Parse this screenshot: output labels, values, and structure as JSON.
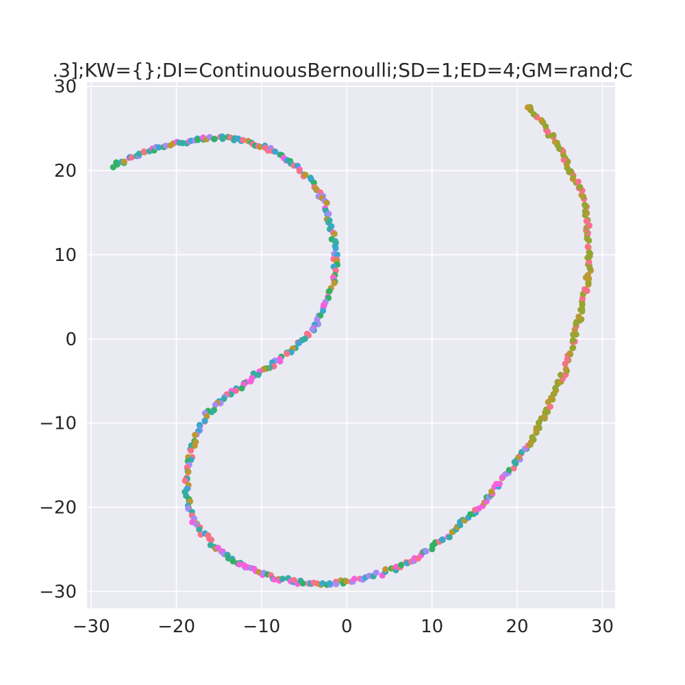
{
  "chart_data": {
    "type": "scatter",
    "title": ".3];KW={};DI=ContinuousBernoulli;SD=1;ED=4;GM=rand;C",
    "xlabel": "",
    "ylabel": "",
    "xlim": [
      -30.5,
      31.5
    ],
    "ylim": [
      -32,
      30.5
    ],
    "xticks": [
      -30,
      -20,
      -10,
      0,
      10,
      20,
      30
    ],
    "yticks": [
      -30,
      -20,
      -10,
      0,
      10,
      20,
      30
    ],
    "xtick_labels": [
      "−30",
      "−20",
      "−10",
      "0",
      "10",
      "20",
      "30"
    ],
    "ytick_labels": [
      "−30",
      "−20",
      "−10",
      "0",
      "10",
      "20",
      "30"
    ],
    "grid": true,
    "background": "#eaeaf2",
    "palette": [
      "#f77189",
      "#bb9832",
      "#97a431",
      "#32b166",
      "#36ada4",
      "#39a7d0",
      "#a48cf4",
      "#f561dd"
    ],
    "curves": [
      {
        "color_indices": [
          7,
          6,
          5,
          4,
          3,
          1,
          0
        ],
        "points": [
          [
            -27.5,
            20.5
          ],
          [
            -26,
            21.2
          ],
          [
            -24,
            22.2
          ],
          [
            -22,
            22.8
          ],
          [
            -20,
            23.3
          ],
          [
            -18,
            23.5
          ],
          [
            -16,
            23.8
          ],
          [
            -14,
            23.9
          ],
          [
            -12,
            23.6
          ],
          [
            -10,
            23.0
          ],
          [
            -8,
            22.0
          ],
          [
            -6,
            20.5
          ],
          [
            -4,
            18.5
          ],
          [
            -2.5,
            16
          ],
          [
            -1.8,
            13
          ],
          [
            -1.3,
            10
          ],
          [
            -1.4,
            7.5
          ],
          [
            -2.3,
            4.5
          ],
          [
            -3.5,
            2
          ],
          [
            -5,
            0
          ],
          [
            -7,
            -1.8
          ],
          [
            -9,
            -3.3
          ],
          [
            -11,
            -4.5
          ],
          [
            -13,
            -6
          ],
          [
            -15,
            -7.5
          ],
          [
            -16.5,
            -9
          ],
          [
            -17.5,
            -11
          ],
          [
            -18.3,
            -13.5
          ],
          [
            -18.8,
            -16
          ],
          [
            -18.8,
            -18.5
          ],
          [
            -18.3,
            -21
          ],
          [
            -17,
            -23
          ],
          [
            -15,
            -25
          ],
          [
            -13,
            -26.5
          ],
          [
            -11,
            -27.5
          ],
          [
            -9,
            -28.2
          ],
          [
            -7,
            -28.6
          ],
          [
            -5,
            -29
          ],
          [
            -3,
            -29.1
          ],
          [
            -1.5,
            -29
          ],
          [
            0.5,
            -28.8
          ],
          [
            3,
            -28.2
          ],
          [
            5,
            -27.5
          ],
          [
            7.5,
            -26.5
          ],
          [
            9.5,
            -25
          ],
          [
            12,
            -23.3
          ],
          [
            14,
            -21.5
          ],
          [
            16,
            -19.5
          ],
          [
            18,
            -17
          ],
          [
            20,
            -14.5
          ],
          [
            21.5,
            -12.5
          ]
        ]
      },
      {
        "color_indices": [
          2,
          2,
          2,
          0,
          1
        ],
        "points": [
          [
            21.5,
            -12.5
          ],
          [
            22.5,
            -10.5
          ],
          [
            23.5,
            -8.5
          ],
          [
            24.5,
            -6
          ],
          [
            25.5,
            -4
          ],
          [
            26.2,
            -1.5
          ],
          [
            27,
            1
          ],
          [
            27.5,
            3.5
          ],
          [
            28,
            5.5
          ],
          [
            28.4,
            8
          ],
          [
            28.5,
            10.5
          ],
          [
            28.3,
            13
          ],
          [
            28,
            15.5
          ],
          [
            27.5,
            17.5
          ],
          [
            26.5,
            19.5
          ],
          [
            25.5,
            21.5
          ],
          [
            24.5,
            23.5
          ],
          [
            23.5,
            25
          ],
          [
            22.5,
            26.3
          ],
          [
            21.5,
            27.3
          ],
          [
            21,
            27.8
          ]
        ]
      }
    ]
  }
}
